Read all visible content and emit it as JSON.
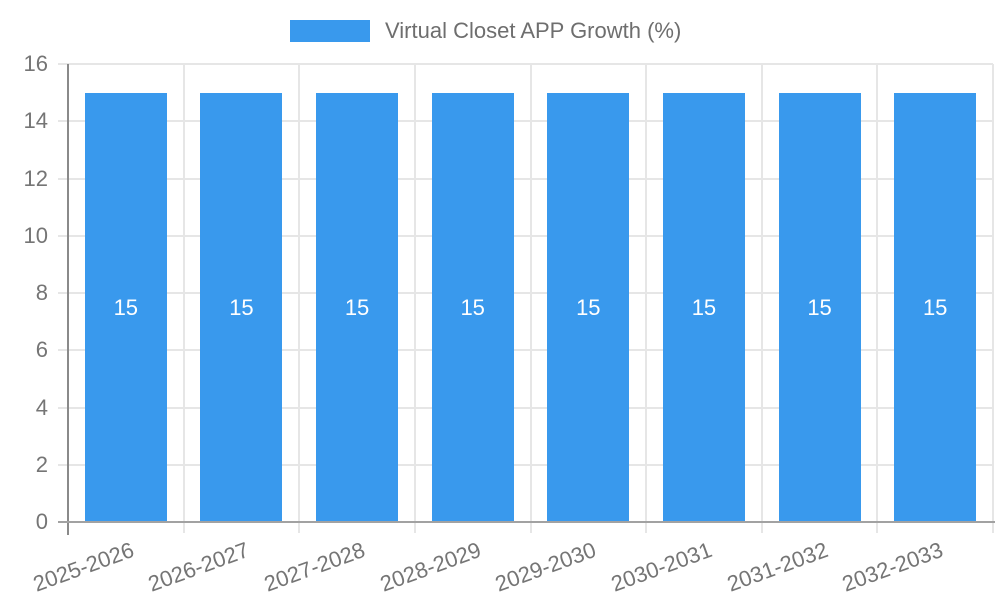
{
  "chart_data": {
    "type": "bar",
    "title": "",
    "legend": {
      "label": "Virtual Closet APP Growth (%)",
      "position": "top"
    },
    "categories": [
      "2025-2026",
      "2026-2027",
      "2027-2028",
      "2028-2029",
      "2029-2030",
      "2030-2031",
      "2031-2032",
      "2032-2033"
    ],
    "series": [
      {
        "name": "Virtual Closet APP Growth (%)",
        "values": [
          15,
          15,
          15,
          15,
          15,
          15,
          15,
          15
        ]
      }
    ],
    "value_labels": [
      "15",
      "15",
      "15",
      "15",
      "15",
      "15",
      "15",
      "15"
    ],
    "value_labels_shown": true,
    "xlabel": "",
    "ylabel": "",
    "y_axis": {
      "min": 0,
      "max": 16,
      "tick_step": 2,
      "tick_labels": [
        "0",
        "2",
        "4",
        "6",
        "8",
        "10",
        "12",
        "14",
        "16"
      ]
    },
    "x_axis": {
      "label_rotation_deg": -20
    },
    "grid": true,
    "colors": {
      "bar": "#3999ED",
      "grid": "#e6e6e6",
      "axis": "#a2a2a2",
      "axis_dark": "#8a8a8a",
      "text": "#757575",
      "legend_text": "#6e6e6e",
      "value_label": "#ffffff"
    }
  }
}
